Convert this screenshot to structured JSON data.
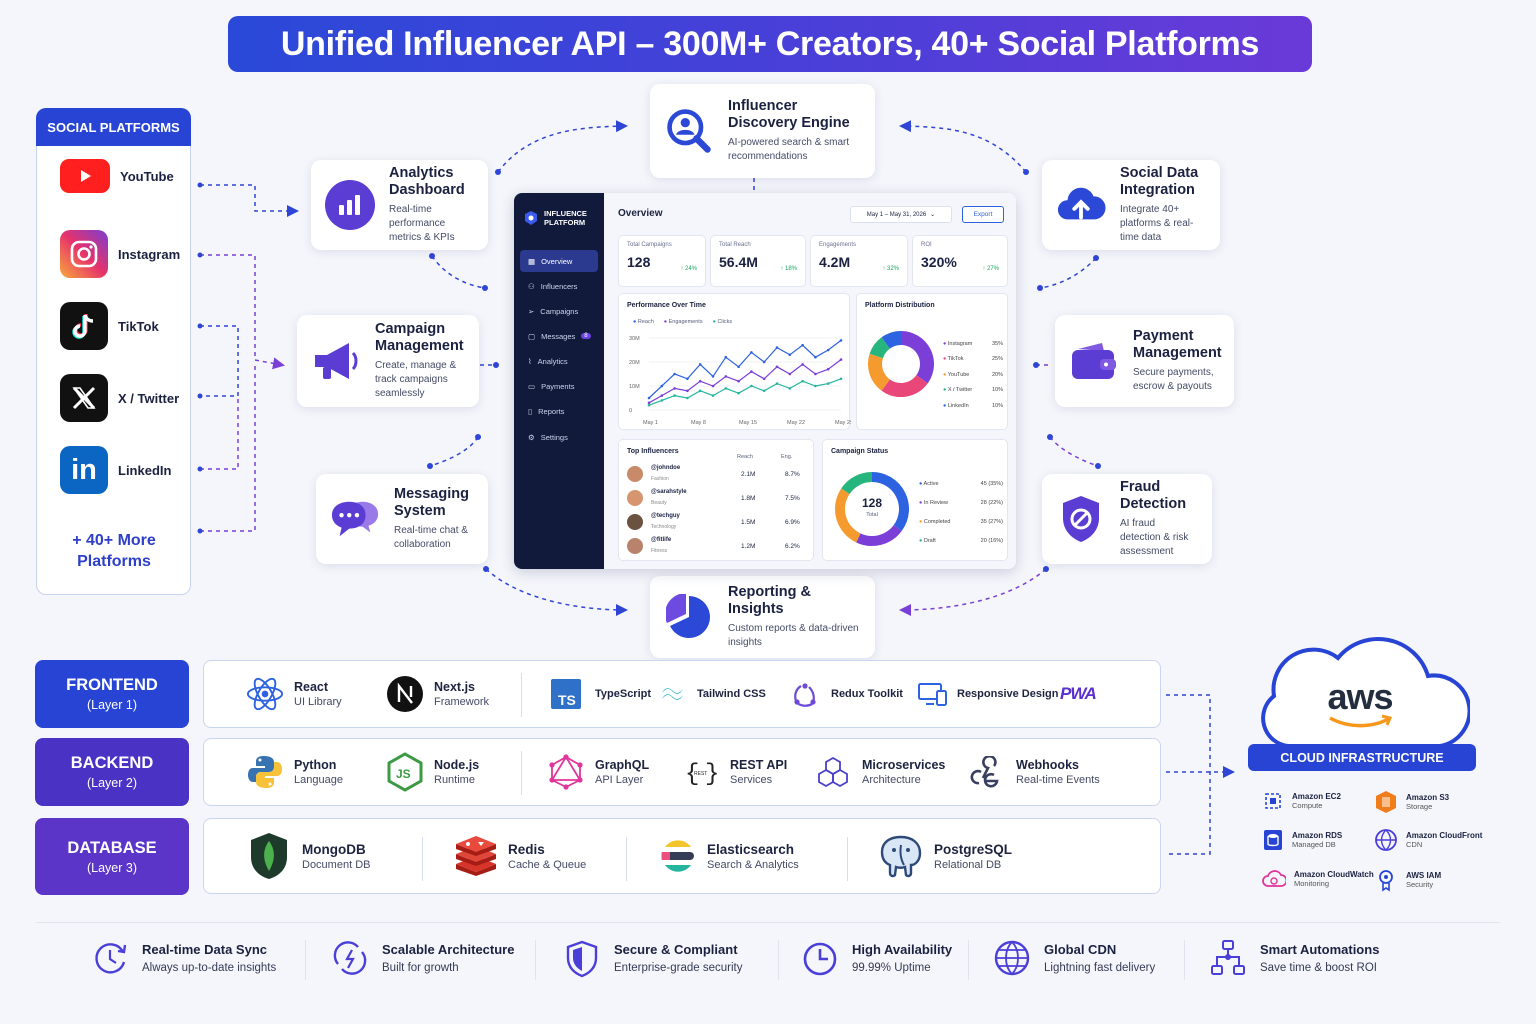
{
  "title": "Unified Influencer API – 300M+ Creators, 40+ Social Platforms",
  "colors": {
    "primary": "#2744d4",
    "purple": "#5b34c8",
    "accent": "#6c3bd8"
  },
  "social": {
    "heading": "SOCIAL PLATFORMS",
    "items": [
      {
        "label": "YouTube",
        "icon": "youtube-icon"
      },
      {
        "label": "Instagram",
        "icon": "instagram-icon"
      },
      {
        "label": "TikTok",
        "icon": "tiktok-icon"
      },
      {
        "label": "X / Twitter",
        "icon": "x-twitter-icon"
      },
      {
        "label": "LinkedIn",
        "icon": "linkedin-icon"
      }
    ],
    "more": "+ 40+ More Platforms"
  },
  "features": {
    "discovery": {
      "title": "Influencer Discovery Engine",
      "desc": "AI-powered search & smart recommendations"
    },
    "analytics": {
      "title": "Analytics Dashboard",
      "desc": "Real-time performance metrics & KPIs"
    },
    "social_data": {
      "title": "Social Data Integration",
      "desc": "Integrate 40+ platforms & real-time data"
    },
    "campaign": {
      "title": "Campaign Management",
      "desc": "Create, manage & track campaigns seamlessly"
    },
    "payment": {
      "title": "Payment Management",
      "desc": "Secure payments, escrow & payouts"
    },
    "messaging": {
      "title": "Messaging System",
      "desc": "Real-time chat & collaboration"
    },
    "fraud": {
      "title": "Fraud Detection",
      "desc": "AI fraud detection & risk assessment"
    },
    "reporting": {
      "title": "Reporting & Insights",
      "desc": "Custom reports & data-driven insights"
    }
  },
  "dashboard": {
    "brand": "INFLUENCE PLATFORM",
    "nav": [
      "Overview",
      "Influencers",
      "Campaigns",
      "Messages",
      "Analytics",
      "Payments",
      "Reports",
      "Settings"
    ],
    "messages_badge": "8",
    "heading": "Overview",
    "date_range": "May 1 – May 31, 2026",
    "export": "Export",
    "kpis": [
      {
        "label": "Total Campaigns",
        "value": "128",
        "delta": "↑ 24%"
      },
      {
        "label": "Total Reach",
        "value": "56.4M",
        "delta": "↑ 18%"
      },
      {
        "label": "Engagements",
        "value": "4.2M",
        "delta": "↑ 32%"
      },
      {
        "label": "ROI",
        "value": "320%",
        "delta": "↑ 27%"
      }
    ],
    "perf": {
      "title": "Performance Over Time",
      "legend": [
        "Reach",
        "Engagements",
        "Clicks"
      ],
      "yticks": [
        "30M",
        "20M",
        "10M",
        "0"
      ],
      "xticks": [
        "May 1",
        "May 8",
        "May 15",
        "May 22",
        "May 29"
      ]
    },
    "dist": {
      "title": "Platform Distribution",
      "items": [
        {
          "name": "Instagram",
          "pct": "35%",
          "value": 35,
          "color": "#7b3fd8"
        },
        {
          "name": "TikTok",
          "pct": "25%",
          "value": 25,
          "color": "#e9467a"
        },
        {
          "name": "YouTube",
          "pct": "20%",
          "value": 20,
          "color": "#f59a2f"
        },
        {
          "name": "X / Twitter",
          "pct": "10%",
          "value": 10,
          "color": "#26b57c"
        },
        {
          "name": "LinkedIn",
          "pct": "10%",
          "value": 10,
          "color": "#2d62e0"
        }
      ]
    },
    "top": {
      "title": "Top Influencers",
      "cols": [
        "Reach",
        "Eng."
      ],
      "rows": [
        {
          "handle": "@johndoe",
          "cat": "Fashion",
          "reach": "2.1M",
          "eng": "8.7%"
        },
        {
          "handle": "@sarahstyle",
          "cat": "Beauty",
          "reach": "1.8M",
          "eng": "7.5%"
        },
        {
          "handle": "@techguy",
          "cat": "Technology",
          "reach": "1.5M",
          "eng": "6.9%"
        },
        {
          "handle": "@fitlife",
          "cat": "Fitness",
          "reach": "1.2M",
          "eng": "6.2%"
        }
      ]
    },
    "status": {
      "title": "Campaign Status",
      "center_value": "128",
      "center_label": "Total",
      "items": [
        {
          "name": "Active",
          "val": "45 (35%)",
          "value": 45,
          "color": "#2d62e0"
        },
        {
          "name": "In Review",
          "val": "28 (22%)",
          "value": 28,
          "color": "#7b3fd8"
        },
        {
          "name": "Completed",
          "val": "35 (27%)",
          "value": 35,
          "color": "#f59a2f"
        },
        {
          "name": "Draft",
          "val": "20 (16%)",
          "value": 20,
          "color": "#26b57c"
        }
      ]
    }
  },
  "chart_data": {
    "type": "line",
    "title": "Performance Over Time",
    "x": [
      "May 1",
      "May 3",
      "May 5",
      "May 7",
      "May 9",
      "May 11",
      "May 13",
      "May 15",
      "May 17",
      "May 19",
      "May 21",
      "May 23",
      "May 25",
      "May 27",
      "May 29",
      "May 31"
    ],
    "ylim": [
      0,
      30
    ],
    "yticks": [
      "30M",
      "20M",
      "10M",
      "0"
    ],
    "series": [
      {
        "name": "Reach",
        "color": "#2d62e0",
        "values": [
          5,
          10,
          15,
          13,
          19,
          14,
          22,
          18,
          24,
          20,
          26,
          23,
          27,
          22,
          25,
          29
        ]
      },
      {
        "name": "Engagements",
        "color": "#7b3fd8",
        "values": [
          3,
          6,
          9,
          8,
          12,
          10,
          14,
          12,
          16,
          13,
          18,
          15,
          19,
          15,
          17,
          21
        ]
      },
      {
        "name": "Clicks",
        "color": "#26b5a0",
        "values": [
          2,
          4,
          6,
          5,
          8,
          6,
          9,
          7,
          10,
          8,
          11,
          9,
          12,
          10,
          11,
          13
        ]
      }
    ]
  },
  "layers": [
    {
      "name": "FRONTEND",
      "sub": "(Layer 1)",
      "color": "#2744d4",
      "tech": [
        {
          "name": "React",
          "sub": "UI Library",
          "icon": "react-icon"
        },
        {
          "name": "Next.js",
          "sub": "Framework",
          "icon": "nextjs-icon"
        },
        {
          "name": "TypeScript",
          "sub": "",
          "icon": "typescript-icon"
        },
        {
          "name": "Tailwind CSS",
          "sub": "",
          "icon": "tailwind-icon"
        },
        {
          "name": "Redux Toolkit",
          "sub": "",
          "icon": "redux-icon"
        },
        {
          "name": "Responsive Design",
          "sub": "",
          "icon": "responsive-icon"
        },
        {
          "name": "PWA",
          "sub": "",
          "icon": "pwa-icon"
        }
      ]
    },
    {
      "name": "BACKEND",
      "sub": "(Layer 2)",
      "color": "#4a33c4",
      "tech": [
        {
          "name": "Python",
          "sub": "Language",
          "icon": "python-icon"
        },
        {
          "name": "Node.js",
          "sub": "Runtime",
          "icon": "nodejs-icon"
        },
        {
          "name": "GraphQL",
          "sub": "API Layer",
          "icon": "graphql-icon"
        },
        {
          "name": "REST API",
          "sub": "Services",
          "icon": "rest-api-icon"
        },
        {
          "name": "Microservices",
          "sub": "Architecture",
          "icon": "microservices-icon"
        },
        {
          "name": "Webhooks",
          "sub": "Real-time Events",
          "icon": "webhooks-icon"
        }
      ]
    },
    {
      "name": "DATABASE",
      "sub": "(Layer 3)",
      "color": "#5b34c8",
      "tech": [
        {
          "name": "MongoDB",
          "sub": "Document DB",
          "icon": "mongodb-icon"
        },
        {
          "name": "Redis",
          "sub": "Cache & Queue",
          "icon": "redis-icon"
        },
        {
          "name": "Elasticsearch",
          "sub": "Search & Analytics",
          "icon": "elasticsearch-icon"
        },
        {
          "name": "PostgreSQL",
          "sub": "Relational DB",
          "icon": "postgresql-icon"
        }
      ]
    }
  ],
  "aws": {
    "logo": "aws",
    "label": "CLOUD INFRASTRUCTURE",
    "items": [
      {
        "name": "Amazon EC2",
        "sub": "Compute"
      },
      {
        "name": "Amazon S3",
        "sub": "Storage"
      },
      {
        "name": "Amazon RDS",
        "sub": "Managed DB"
      },
      {
        "name": "Amazon CloudFront",
        "sub": "CDN"
      },
      {
        "name": "Amazon CloudWatch",
        "sub": "Monitoring"
      },
      {
        "name": "AWS IAM",
        "sub": "Security"
      }
    ]
  },
  "benefits": [
    {
      "title": "Real-time Data Sync",
      "sub": "Always up-to-date insights",
      "icon": "sync-icon"
    },
    {
      "title": "Scalable Architecture",
      "sub": "Built for growth",
      "icon": "scale-icon"
    },
    {
      "title": "Secure & Compliant",
      "sub": "Enterprise-grade security",
      "icon": "shield-icon"
    },
    {
      "title": "High Availability",
      "sub": "99.99% Uptime",
      "icon": "clock-icon"
    },
    {
      "title": "Global CDN",
      "sub": "Lightning fast delivery",
      "icon": "globe-icon"
    },
    {
      "title": "Smart Automations",
      "sub": "Save time & boost ROI",
      "icon": "automation-icon"
    }
  ]
}
